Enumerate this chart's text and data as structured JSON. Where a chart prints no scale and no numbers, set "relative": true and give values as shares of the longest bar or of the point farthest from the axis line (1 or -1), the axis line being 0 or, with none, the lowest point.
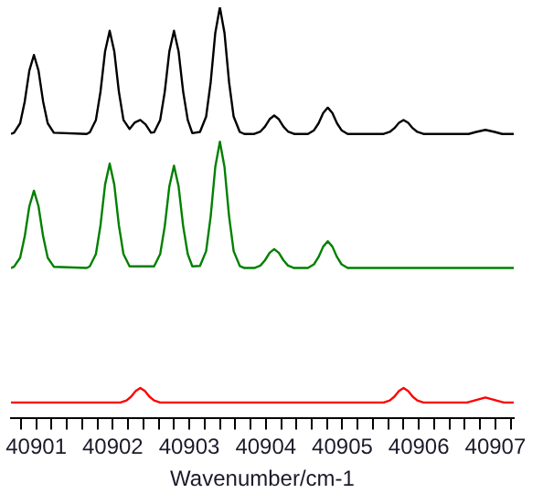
{
  "chart_data": {
    "type": "line",
    "relative": true,
    "xlabel": "Wavenumber/cm-1",
    "xlim": [
      40900.67,
      40907.24
    ],
    "xticks": [
      {
        "value": 40900.8,
        "label": null
      },
      40901,
      {
        "value": 40901.2,
        "label": null
      },
      {
        "value": 40901.4,
        "label": null
      },
      {
        "value": 40901.6,
        "label": null
      },
      {
        "value": 40901.8,
        "label": null
      },
      40902,
      {
        "value": 40902.2,
        "label": null
      },
      {
        "value": 40902.4,
        "label": null
      },
      {
        "value": 40902.6,
        "label": null
      },
      {
        "value": 40902.8,
        "label": null
      },
      40903,
      {
        "value": 40903.2,
        "label": null
      },
      {
        "value": 40903.4,
        "label": null
      },
      {
        "value": 40903.6,
        "label": null
      },
      {
        "value": 40903.8,
        "label": null
      },
      40904,
      {
        "value": 40904.2,
        "label": null
      },
      {
        "value": 40904.4,
        "label": null
      },
      {
        "value": 40904.6,
        "label": null
      },
      {
        "value": 40904.8,
        "label": null
      },
      40905,
      {
        "value": 40905.2,
        "label": null
      },
      {
        "value": 40905.4,
        "label": null
      },
      {
        "value": 40905.6,
        "label": null
      },
      {
        "value": 40905.8,
        "label": null
      },
      40906,
      {
        "value": 40906.2,
        "label": null
      },
      {
        "value": 40906.4,
        "label": null
      },
      {
        "value": 40906.6,
        "label": null
      },
      {
        "value": 40906.8,
        "label": null
      },
      40907,
      {
        "value": 40907.2,
        "label": null
      }
    ],
    "grid": false,
    "legend": false,
    "marker": "none",
    "line_style": "solid",
    "tick_labels": "x",
    "series": [
      {
        "color": "#000000",
        "x": [
          40900.67,
          40900.71,
          40900.79,
          40900.85,
          40900.91,
          40900.97,
          40901.03,
          40901.09,
          40901.15,
          40901.23,
          40901.66,
          40901.7,
          40901.78,
          40901.84,
          40901.9,
          40901.96,
          40902.02,
          40902.08,
          40902.14,
          40902.22,
          40902.29,
          40902.36,
          40902.43,
          40902.5,
          40902.54,
          40902.62,
          40902.68,
          40902.74,
          40902.8,
          40902.86,
          40902.92,
          40902.98,
          40903.04,
          40903.14,
          40903.22,
          40903.28,
          40903.34,
          40903.4,
          40903.46,
          40903.52,
          40903.58,
          40903.66,
          40903.72,
          40903.85,
          40903.93,
          40903.99,
          40904.05,
          40904.11,
          40904.17,
          40904.23,
          40904.29,
          40904.37,
          40904.55,
          40904.63,
          40904.69,
          40904.75,
          40904.81,
          40904.87,
          40904.93,
          40904.99,
          40905.07,
          40905.54,
          40905.62,
          40905.68,
          40905.74,
          40905.8,
          40905.86,
          40905.92,
          40905.98,
          40906.06,
          40906.65,
          40906.75,
          40906.87,
          40906.99,
          40907.09,
          40907.24
        ],
        "values": [
          0.692,
          0.695,
          0.718,
          0.771,
          0.846,
          0.884,
          0.846,
          0.771,
          0.718,
          0.695,
          0.692,
          0.696,
          0.726,
          0.795,
          0.893,
          0.943,
          0.893,
          0.795,
          0.726,
          0.704,
          0.72,
          0.726,
          0.715,
          0.695,
          0.696,
          0.726,
          0.795,
          0.893,
          0.943,
          0.893,
          0.795,
          0.726,
          0.694,
          0.697,
          0.734,
          0.818,
          0.938,
          1,
          0.938,
          0.818,
          0.734,
          0.697,
          0.692,
          0.692,
          0.698,
          0.71,
          0.728,
          0.737,
          0.728,
          0.71,
          0.698,
          0.692,
          0.692,
          0.701,
          0.718,
          0.743,
          0.756,
          0.743,
          0.718,
          0.701,
          0.692,
          0.692,
          0.697,
          0.706,
          0.719,
          0.726,
          0.719,
          0.706,
          0.697,
          0.692,
          0.692,
          0.697,
          0.702,
          0.697,
          0.692,
          0.692
        ]
      },
      {
        "color": "#008000",
        "x": [
          40900.67,
          40900.71,
          40900.79,
          40900.85,
          40900.91,
          40900.97,
          40901.03,
          40901.09,
          40901.15,
          40901.23,
          40901.66,
          40901.7,
          40901.78,
          40901.84,
          40901.9,
          40901.96,
          40902.02,
          40902.08,
          40902.14,
          40902.22,
          40902.54,
          40902.62,
          40902.68,
          40902.74,
          40902.8,
          40902.86,
          40902.92,
          40902.98,
          40903.04,
          40903.14,
          40903.22,
          40903.28,
          40903.34,
          40903.4,
          40903.46,
          40903.52,
          40903.58,
          40903.66,
          40903.72,
          40903.85,
          40903.93,
          40903.99,
          40904.05,
          40904.11,
          40904.17,
          40904.23,
          40904.29,
          40904.37,
          40904.55,
          40904.63,
          40904.69,
          40904.75,
          40904.81,
          40904.87,
          40904.93,
          40904.99,
          40905.07,
          40907.24
        ],
        "values": [
          0.366,
          0.369,
          0.391,
          0.443,
          0.516,
          0.554,
          0.516,
          0.443,
          0.391,
          0.369,
          0.366,
          0.37,
          0.4,
          0.47,
          0.569,
          0.62,
          0.569,
          0.47,
          0.4,
          0.37,
          0.37,
          0.4,
          0.468,
          0.565,
          0.615,
          0.565,
          0.468,
          0.4,
          0.37,
          0.371,
          0.407,
          0.492,
          0.612,
          0.673,
          0.612,
          0.492,
          0.407,
          0.371,
          0.366,
          0.366,
          0.372,
          0.385,
          0.403,
          0.412,
          0.403,
          0.385,
          0.372,
          0.366,
          0.366,
          0.375,
          0.393,
          0.418,
          0.431,
          0.418,
          0.393,
          0.375,
          0.366,
          0.366
        ]
      },
      {
        "color": "#ff0000",
        "x": [
          40900.67,
          40902.1,
          40902.18,
          40902.24,
          40902.3,
          40902.36,
          40902.42,
          40902.48,
          40902.54,
          40902.62,
          40905.54,
          40905.62,
          40905.68,
          40905.74,
          40905.8,
          40905.86,
          40905.92,
          40905.98,
          40906.06,
          40906.63,
          40906.75,
          40906.87,
          40906.99,
          40907.11,
          40907.24
        ],
        "values": [
          0.039,
          0.039,
          0.044,
          0.053,
          0.067,
          0.074,
          0.067,
          0.053,
          0.044,
          0.039,
          0.039,
          0.044,
          0.053,
          0.067,
          0.074,
          0.067,
          0.053,
          0.044,
          0.039,
          0.039,
          0.045,
          0.051,
          0.045,
          0.039,
          0.039
        ]
      }
    ]
  }
}
